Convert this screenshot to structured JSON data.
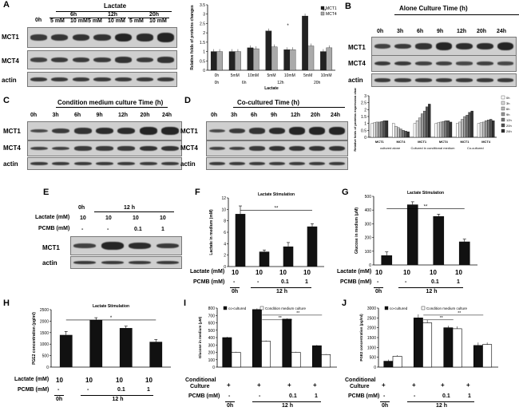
{
  "panels": {
    "A": {
      "label": "A",
      "header": "Lactate",
      "zero": "0h",
      "times": [
        "6h",
        "12h",
        "20h"
      ],
      "doses": [
        "5 mM",
        "10 mM"
      ],
      "rows": [
        "MCT1",
        "MCT4",
        "actin"
      ]
    },
    "B": {
      "label": "B",
      "header": "Alone Culture Time (h)",
      "times": [
        "0h",
        "3h",
        "6h",
        "9h",
        "12h",
        "20h",
        "24h"
      ],
      "rows": [
        "MCT1",
        "MCT4",
        "actin"
      ]
    },
    "C": {
      "label": "C",
      "header": "Condition medium culture Time (h)",
      "times": [
        "0h",
        "3h",
        "6h",
        "9h",
        "12h",
        "20h",
        "24h"
      ],
      "rows": [
        "MCT1",
        "MCT4",
        "actin"
      ]
    },
    "D": {
      "label": "D",
      "header": "Co-cultured Time (h)",
      "times": [
        "0h",
        "3h",
        "6h",
        "9h",
        "12h",
        "20h",
        "24h"
      ],
      "rows": [
        "MCT1",
        "MCT4",
        "actin"
      ]
    },
    "E": {
      "label": "E",
      "zero": "0h",
      "time": "12 h",
      "lactate_label": "Lactate (mM)",
      "pcmb_label": "PCMB (mM)",
      "lactate": [
        "10",
        "10",
        "10",
        "10"
      ],
      "pcmb": [
        "-",
        "-",
        "0.1",
        "1"
      ],
      "rows": [
        "MCT1",
        "actin"
      ]
    },
    "F": {
      "label": "F"
    },
    "G": {
      "label": "G"
    },
    "H": {
      "label": "H"
    },
    "I": {
      "label": "I"
    },
    "J": {
      "label": "J"
    },
    "shared": {
      "lactate_label": "Lactate (mM)",
      "pcmb_label": "PCMB (mM)",
      "cond_label_1": "Conditional",
      "cond_label_2": "Culture",
      "zero": "0h",
      "twelve": "12 h",
      "lactate": [
        "10",
        "10",
        "10",
        "10"
      ],
      "pcmb": [
        "-",
        "-",
        "0.1",
        "1"
      ],
      "plus": [
        "+",
        "+",
        "+",
        "+"
      ]
    }
  },
  "chart_data": [
    {
      "id": "A-chart",
      "type": "bar",
      "categories": [
        "0h",
        "5mM",
        "10mM",
        "5mM",
        "10mM",
        "5mM",
        "10mM"
      ],
      "group_labels": [
        "0h",
        "6h",
        "12h",
        "20h"
      ],
      "xlabel": "Lactate",
      "ylabel": "Relative folds of proteins changes",
      "ylim": [
        0,
        3.5
      ],
      "yticks": [
        "0",
        "0.5",
        "1",
        "1.5",
        "2",
        "2.5",
        "3",
        "3.5"
      ],
      "series": [
        {
          "name": "MCT1",
          "color": "#222222",
          "values": [
            1,
            1,
            1.2,
            2.1,
            1.1,
            2.9,
            1
          ]
        },
        {
          "name": "MCT4",
          "color": "#aaaaaa",
          "values": [
            1,
            1,
            1.15,
            1.25,
            1.1,
            1.3,
            1.2
          ]
        }
      ],
      "annotations": [
        "*",
        "**"
      ]
    },
    {
      "id": "B-chart",
      "type": "bar",
      "categories": [
        "MCT1",
        "MCT4",
        "MCT1",
        "MCT4",
        "MCT1",
        "MCT4"
      ],
      "group_labels": [
        "cultured alone",
        "Cultured in conditional medium",
        "Co-cultured"
      ],
      "ylabel": "Relative folds of proteins expression changes",
      "ylim": [
        0,
        3
      ],
      "yticks": [
        "0",
        "0.5",
        "1",
        "1.5",
        "2",
        "2.5",
        "3"
      ],
      "series": [
        {
          "name": "0h",
          "values": [
            1,
            1,
            1,
            1,
            1,
            1
          ]
        },
        {
          "name": "3h",
          "values": [
            1.05,
            0.8,
            1.2,
            1.05,
            1.1,
            1.05
          ]
        },
        {
          "name": "6h",
          "values": [
            1.1,
            0.7,
            1.4,
            1.1,
            1.3,
            1.1
          ]
        },
        {
          "name": "9h",
          "values": [
            1.1,
            0.6,
            1.7,
            1.15,
            1.5,
            1.2
          ]
        },
        {
          "name": "12h",
          "values": [
            1.15,
            0.5,
            1.9,
            1.2,
            1.6,
            1.25
          ]
        },
        {
          "name": "20h",
          "values": [
            1.2,
            0.45,
            2.2,
            1.2,
            1.8,
            1.3
          ]
        },
        {
          "name": "24h",
          "values": [
            1.2,
            0.4,
            2.4,
            1.1,
            1.9,
            1.2
          ]
        }
      ]
    },
    {
      "id": "F-chart",
      "type": "bar",
      "title": "Lactate Stimulation",
      "ylabel": "Lactate in medium (mM)",
      "ylim": [
        0,
        12
      ],
      "yticks": [
        "0",
        "2",
        "4",
        "6",
        "8",
        "10",
        "12"
      ],
      "values": [
        9.2,
        2.6,
        3.5,
        7
      ],
      "errors": [
        1.4,
        0.3,
        0.7,
        0.5
      ],
      "annotation": "**"
    },
    {
      "id": "G-chart",
      "type": "bar",
      "title": "Lactate Stimulation",
      "ylabel": "Glucose in medium (μM)",
      "ylim": [
        0,
        500
      ],
      "yticks": [
        "0",
        "100",
        "200",
        "300",
        "400",
        "500"
      ],
      "values": [
        70,
        440,
        355,
        170
      ],
      "errors": [
        25,
        20,
        15,
        18
      ],
      "annotation": "**"
    },
    {
      "id": "H-chart",
      "type": "bar",
      "title": "Lactate Stimulation",
      "ylabel": "PGE2 concentration (pg/ml)",
      "ylim": [
        0,
        2500
      ],
      "yticks": [
        "0",
        "500",
        "1000",
        "1500",
        "2000",
        "2500"
      ],
      "values": [
        1400,
        2050,
        1700,
        1100
      ],
      "errors": [
        150,
        100,
        80,
        100
      ],
      "annotation": "*"
    },
    {
      "id": "I-chart",
      "type": "bar",
      "ylabel": "Glucose in medium (μM)",
      "ylim": [
        0,
        800
      ],
      "yticks": [
        "0",
        "100",
        "200",
        "300",
        "400",
        "500",
        "600",
        "700",
        "800"
      ],
      "series": [
        {
          "name": "co-cultured",
          "color": "#111111",
          "values": [
            400,
            780,
            650,
            290
          ],
          "errors": [
            10,
            15,
            12,
            10
          ]
        },
        {
          "name": "Condition medium culture",
          "color": "#ffffff",
          "values": [
            200,
            350,
            200,
            170
          ],
          "errors": [
            8,
            10,
            8,
            8
          ]
        }
      ],
      "annotation": "**"
    },
    {
      "id": "J-chart",
      "type": "bar",
      "ylabel": "PGE2 concentration (pg/ml)",
      "ylim": [
        0,
        3000
      ],
      "yticks": [
        "0",
        "500",
        "1000",
        "1500",
        "2000",
        "2500",
        "3000"
      ],
      "series": [
        {
          "name": "co-cultured",
          "color": "#111111",
          "values": [
            300,
            2500,
            2000,
            1100
          ],
          "errors": [
            80,
            180,
            100,
            150
          ]
        },
        {
          "name": "Condition medium culture",
          "color": "#ffffff",
          "values": [
            550,
            2250,
            1950,
            1150
          ],
          "errors": [
            60,
            150,
            120,
            100
          ]
        }
      ],
      "annotation": "**"
    }
  ]
}
